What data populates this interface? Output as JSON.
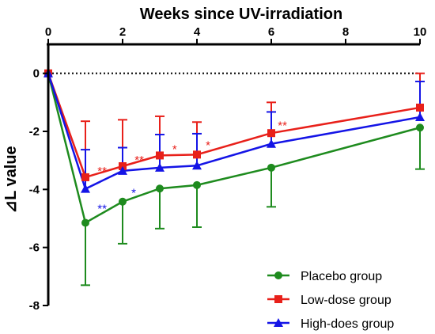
{
  "chart_data": {
    "type": "line",
    "title": "",
    "xlabel": "Weeks since UV-irradiation",
    "ylabel": "⊿L value",
    "x_axis_position": "top",
    "xlim": [
      0,
      10
    ],
    "ylim": [
      -8,
      1
    ],
    "xticks": [
      0,
      2,
      4,
      6,
      8,
      10
    ],
    "yticks": [
      0,
      -2,
      -4,
      -6,
      -8
    ],
    "baseline": {
      "y": 0,
      "style": "dotted"
    },
    "legend_position": "bottom-right",
    "series": [
      {
        "name": "Placebo group",
        "color": "#1e8b1e",
        "marker": "circle",
        "error_direction": "down",
        "x": [
          0,
          1,
          2,
          3,
          4,
          6,
          10
        ],
        "y": [
          0,
          -5.15,
          -4.42,
          -3.97,
          -3.85,
          -3.25,
          -1.87
        ],
        "error": [
          0,
          2.15,
          1.45,
          1.38,
          1.45,
          1.35,
          1.43
        ]
      },
      {
        "name": "Low-dose group",
        "color": "#e8201a",
        "marker": "square",
        "error_direction": "up",
        "x": [
          0,
          1,
          2,
          3,
          4,
          6,
          10
        ],
        "y": [
          0,
          -3.58,
          -3.2,
          -2.83,
          -2.8,
          -2.06,
          -1.18
        ],
        "error": [
          0,
          1.93,
          1.6,
          1.35,
          1.12,
          1.06,
          1.18
        ]
      },
      {
        "name": "High-does group",
        "color": "#1414e6",
        "marker": "triangle",
        "error_direction": "up",
        "x": [
          0,
          1,
          2,
          3,
          4,
          6,
          10
        ],
        "y": [
          0,
          -3.98,
          -3.36,
          -3.25,
          -3.18,
          -2.43,
          -1.51
        ],
        "error": [
          0,
          1.35,
          0.8,
          1.14,
          1.1,
          1.1,
          1.23
        ]
      }
    ],
    "annotations": [
      {
        "text": "**",
        "x": 1.45,
        "y": -3.5,
        "color": "#e8201a"
      },
      {
        "text": "**",
        "x": 2.45,
        "y": -3.12,
        "color": "#e8201a"
      },
      {
        "text": "*",
        "x": 3.4,
        "y": -2.75,
        "color": "#e8201a"
      },
      {
        "text": "*",
        "x": 4.3,
        "y": -2.62,
        "color": "#e8201a"
      },
      {
        "text": "**",
        "x": 6.3,
        "y": -1.93,
        "color": "#e8201a"
      },
      {
        "text": "**",
        "x": 1.45,
        "y": -4.8,
        "color": "#1414e6"
      },
      {
        "text": "*",
        "x": 2.3,
        "y": -4.25,
        "color": "#1414e6"
      }
    ]
  }
}
